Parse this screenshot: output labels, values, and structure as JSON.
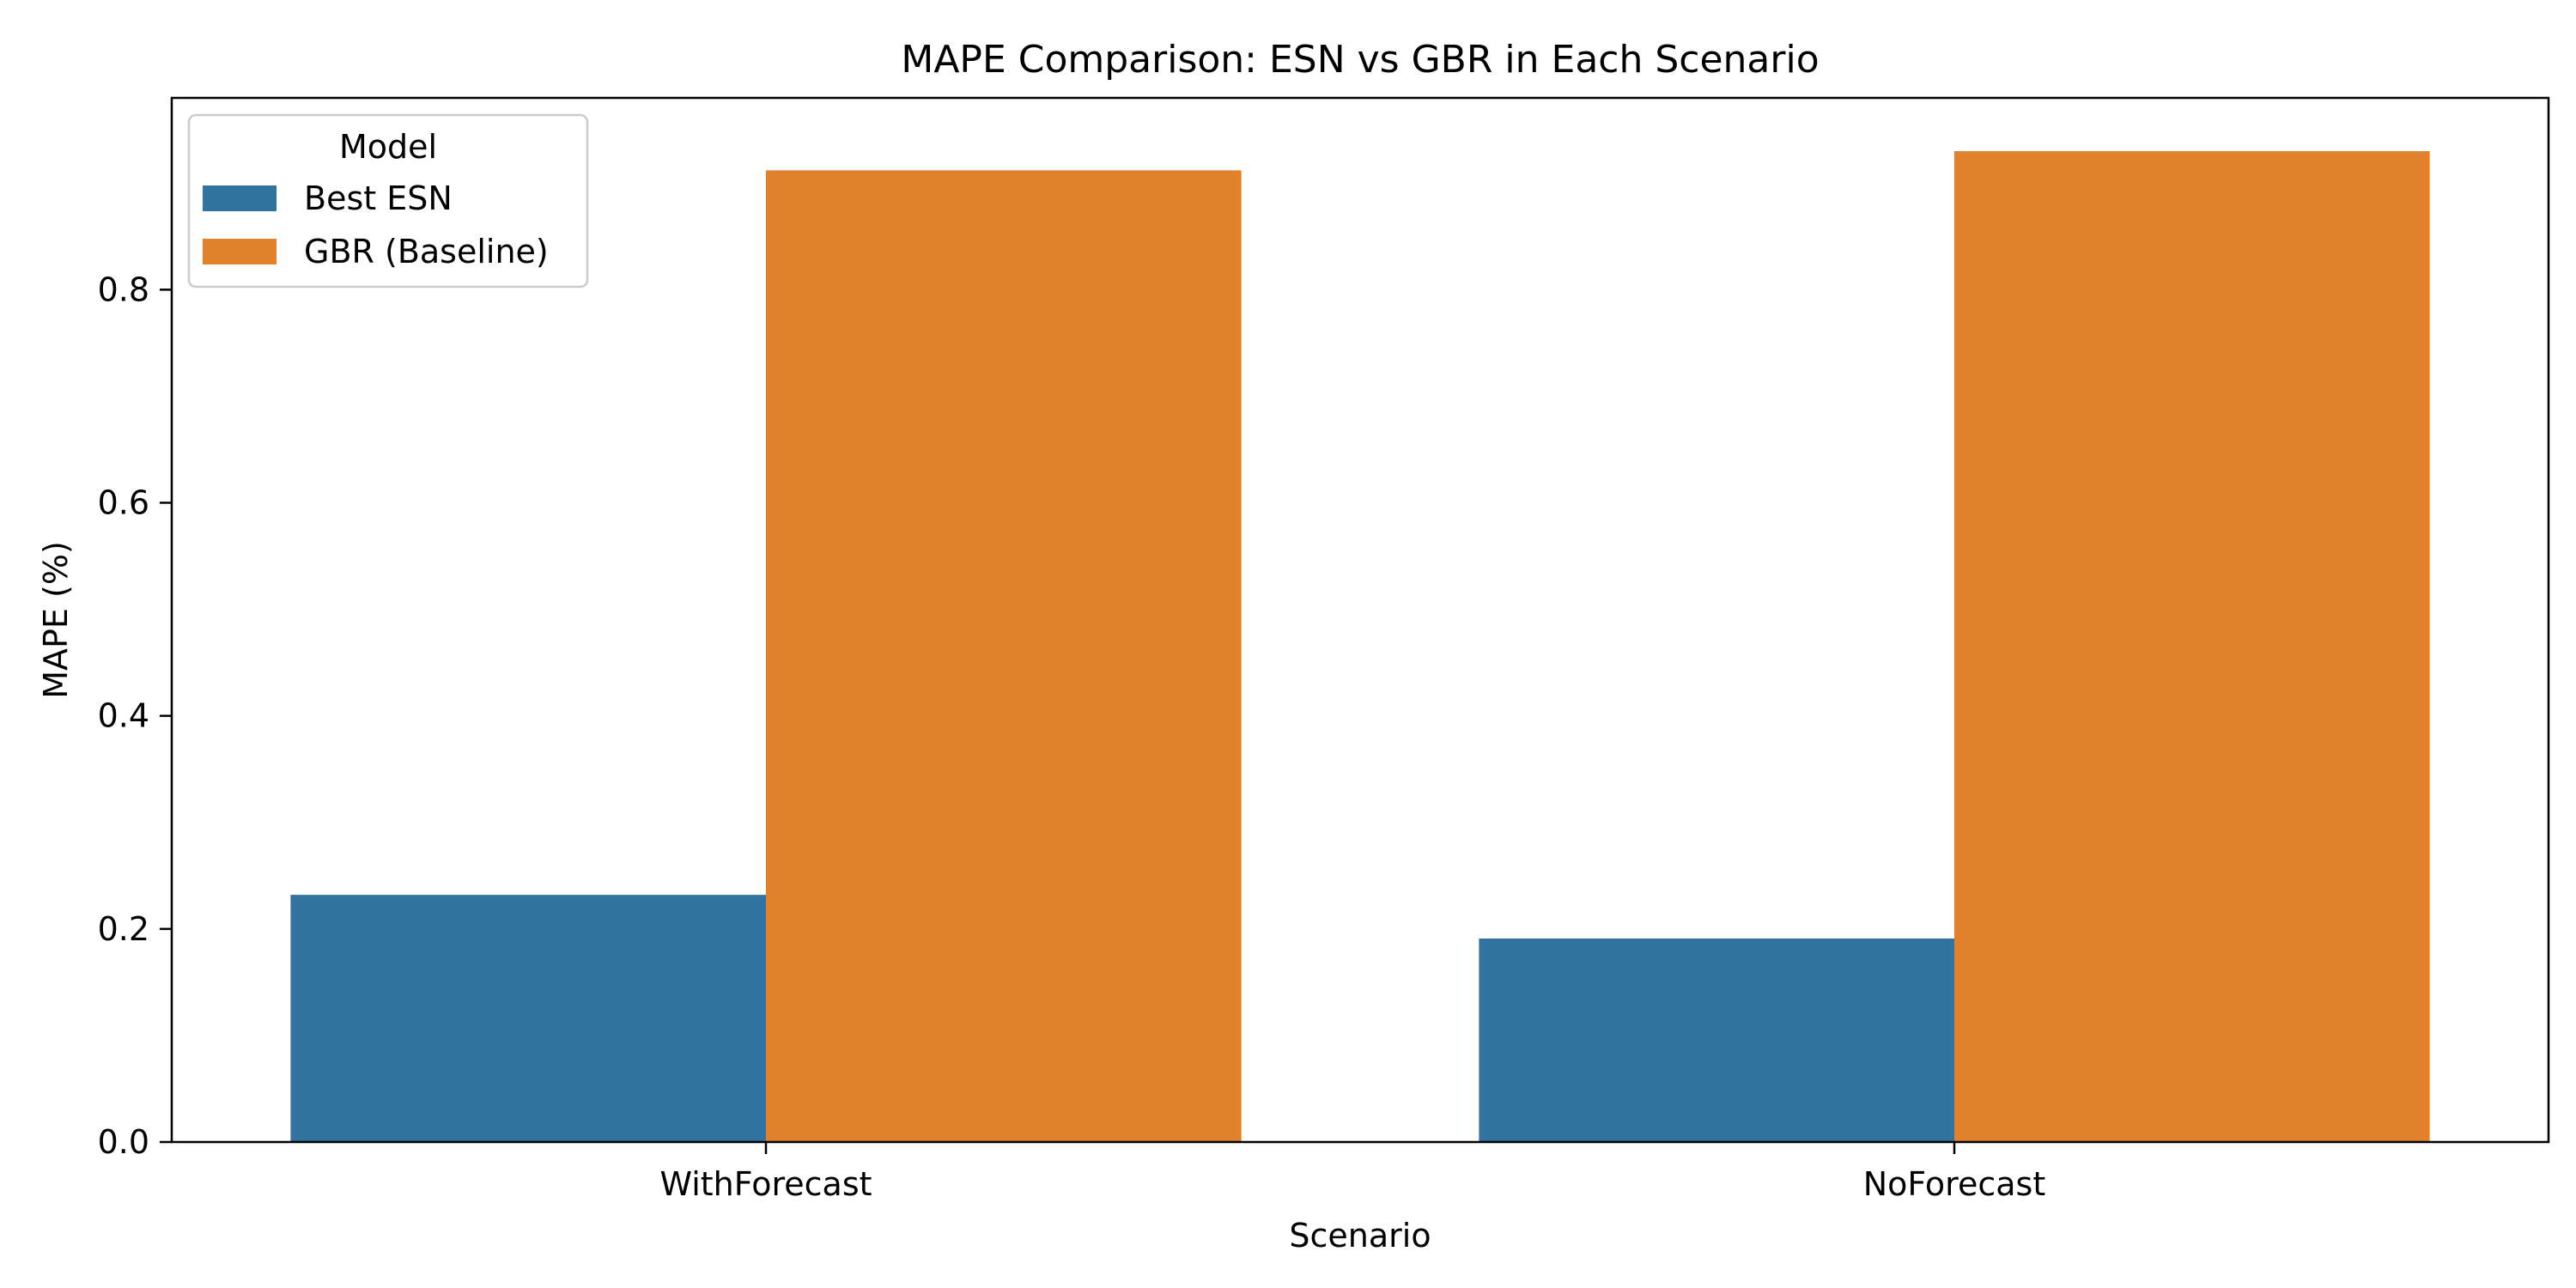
{
  "chart_data": {
    "type": "bar",
    "title": "MAPE Comparison: ESN vs GBR in Each Scenario",
    "xlabel": "Scenario",
    "ylabel": "MAPE (%)",
    "categories": [
      "WithForecast",
      "NoForecast"
    ],
    "series": [
      {
        "name": "Best ESN",
        "color": "#3274a1",
        "values": [
          0.232,
          0.191
        ]
      },
      {
        "name": "GBR (Baseline)",
        "color": "#e1812c",
        "values": [
          0.912,
          0.93
        ]
      }
    ],
    "ylim": [
      0,
      0.98
    ],
    "yticks": [
      0.0,
      0.2,
      0.4,
      0.6,
      0.8
    ],
    "ytick_labels": [
      "0.0",
      "0.2",
      "0.4",
      "0.6",
      "0.8"
    ],
    "grid": false,
    "legend": {
      "title": "Model",
      "placement": "top-left"
    }
  }
}
